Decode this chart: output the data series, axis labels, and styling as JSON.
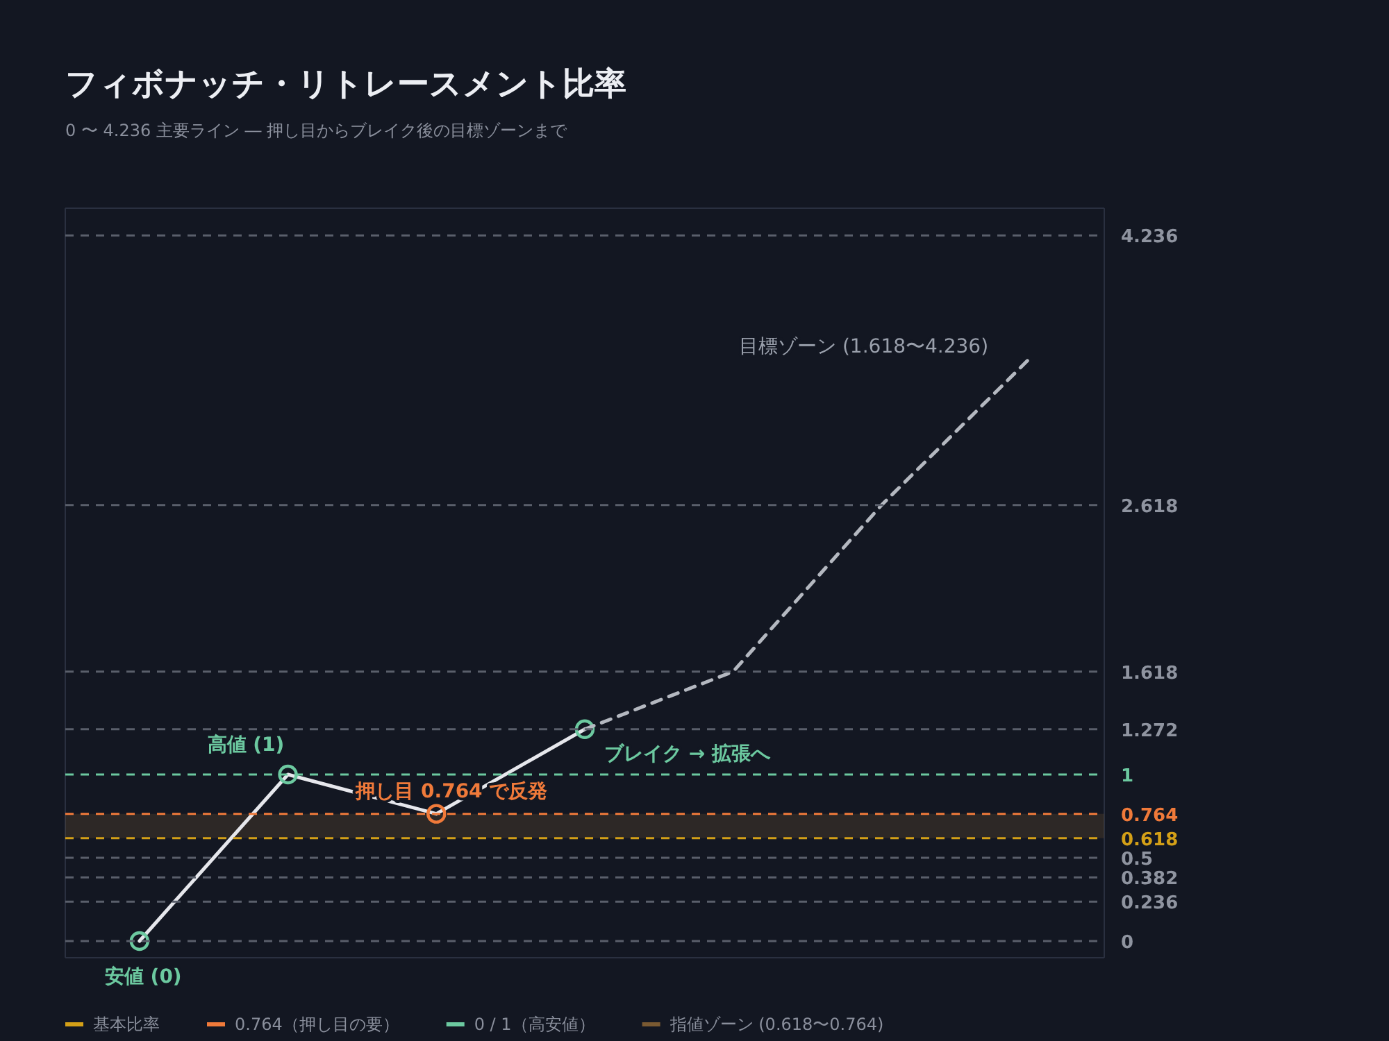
{
  "chart_data": {
    "type": "line",
    "title": "フィボナッチ・リトレースメント比率",
    "subtitle": "0 〜 4.236 主要ライン ― 押し目からブレイク後の目標ゾーンまで",
    "categories": [
      null,
      null,
      null,
      null,
      null,
      null,
      null
    ],
    "series": [
      {
        "color": "#e6e7ec",
        "colors": [
          "#6cc9a0",
          "#6cc9a0",
          "#f07a3a",
          "#6cc9a0",
          null,
          null,
          null
        ],
        "marker": "circle",
        "line_style": "solid",
        "values": [
          0,
          1,
          0.764,
          1.272,
          null,
          null,
          null
        ]
      },
      {
        "color": "#b4b8c0",
        "marker": "none",
        "line_style": "dashed",
        "values": [
          null,
          null,
          null,
          1.272,
          1.618,
          2.618,
          3.5
        ]
      }
    ],
    "ylim": [
      -0.1,
      4.4
    ],
    "yticks": [
      0,
      0.236,
      0.382,
      0.5,
      0.618,
      0.764,
      1,
      1.272,
      1.618,
      2.618,
      4.236
    ],
    "ref_lines": [
      {
        "axis": "y",
        "value": 0,
        "color": "#5a5f6b",
        "line_style": "dashed"
      },
      {
        "axis": "y",
        "value": 0.236,
        "color": "#5a5f6b",
        "line_style": "dashed"
      },
      {
        "axis": "y",
        "value": 0.382,
        "color": "#5a5f6b",
        "line_style": "dashed"
      },
      {
        "axis": "y",
        "value": 0.5,
        "color": "#5a5f6b",
        "line_style": "dashed"
      },
      {
        "axis": "y",
        "value": 0.618,
        "color": "#d4a017",
        "line_style": "dashed",
        "label": "基本比率"
      },
      {
        "axis": "y",
        "value": 0.764,
        "color": "#f07a3a",
        "line_style": "dashed",
        "label": "0.764（押し目の要）"
      },
      {
        "axis": "y",
        "value": 1,
        "color": "#6cc9a0",
        "line_style": "dashed",
        "label": "0 / 1（高安値）"
      },
      {
        "axis": "y",
        "value": 1.272,
        "color": "#5a5f6b",
        "line_style": "dashed"
      },
      {
        "axis": "y",
        "value": 1.618,
        "color": "#5a5f6b",
        "line_style": "dashed"
      },
      {
        "axis": "y",
        "value": 2.618,
        "color": "#5a5f6b",
        "line_style": "dashed"
      },
      {
        "axis": "y",
        "value": 4.236,
        "color": "#5a5f6b",
        "line_style": "dashed"
      }
    ],
    "bands": [
      {
        "axis": "y",
        "from": 0.618,
        "to": 0.764,
        "color": "#7a5a32",
        "label": "指値ゾーン (0.618〜0.764)"
      }
    ],
    "annotations": [
      "安値 (0)",
      "高値 (1)",
      "押し目 0.764 で反発",
      "ブレイク → 拡張へ",
      "目標ゾーン (1.618〜4.236)"
    ],
    "legend": "bottom",
    "grid": false
  }
}
